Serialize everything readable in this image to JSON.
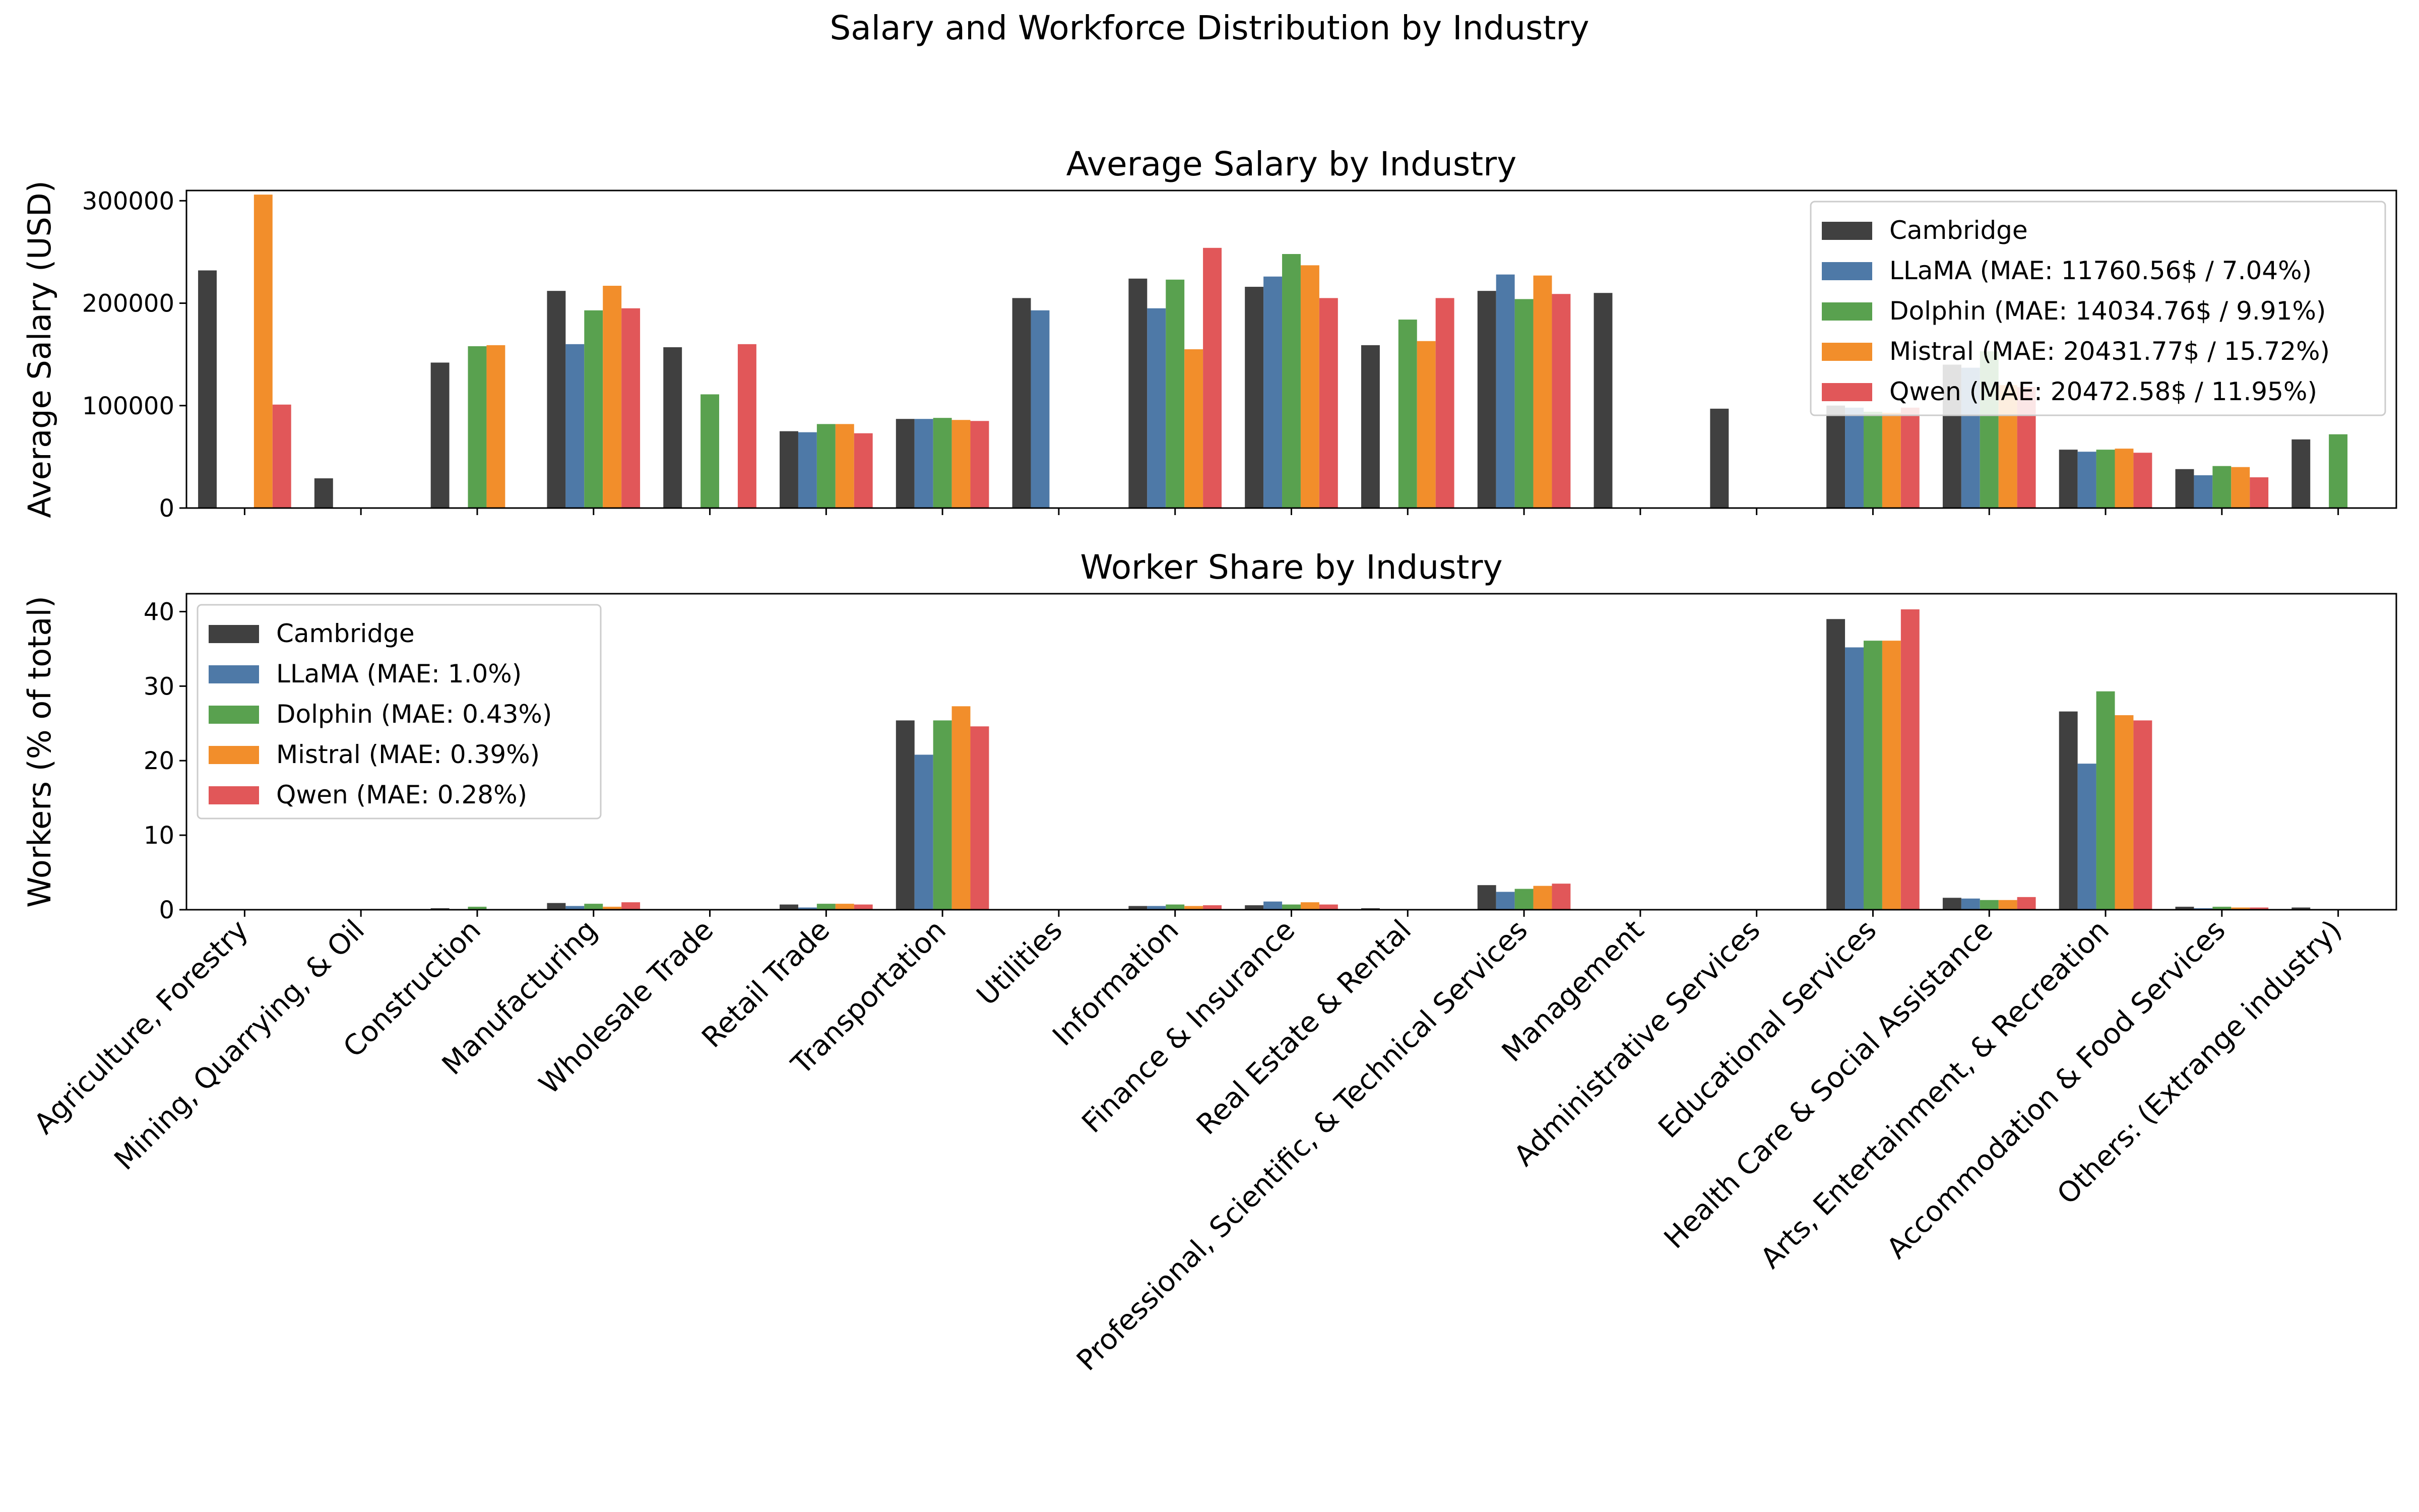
{
  "figure_title": "Salary and Workforce Distribution by Industry",
  "colors": {
    "Cambridge": "#404040",
    "LLaMA": "#4e79a7",
    "Dolphin": "#59a14f",
    "Mistral": "#f28e2b",
    "Qwen": "#e15759"
  },
  "chart_data": [
    {
      "type": "bar",
      "title": "Average Salary by Industry",
      "ylabel": "Average Salary (USD)",
      "xlabel": "",
      "ylim": [
        0,
        310000
      ],
      "yticks": [
        0,
        100000,
        200000,
        300000
      ],
      "legend": "top-right",
      "categories": [
        "Agriculture, Forestry",
        "Mining, Quarrying, & Oil",
        "Construction",
        "Manufacturing",
        "Wholesale Trade",
        "Retail Trade",
        "Transportation",
        "Utilities",
        "Information",
        "Finance & Insurance",
        "Real Estate & Rental",
        "Professional, Scientific, & Technical Services",
        "Management",
        "Administrative Services",
        "Educational Services",
        "Health Care & Social Assistance",
        "Arts, Entertainment, & Recreation",
        "Accommodation & Food Services",
        "Others: (Extrange industry)"
      ],
      "series": [
        {
          "key": "Cambridge",
          "name": "Cambridge",
          "values": [
            232000,
            29000,
            142000,
            212000,
            157000,
            75000,
            87000,
            205000,
            224000,
            216000,
            159000,
            212000,
            210000,
            97000,
            100000,
            140000,
            57000,
            38000,
            67000
          ]
        },
        {
          "key": "LLaMA",
          "name": "LLaMA (MAE: 11760.56$ / 7.04%)",
          "values": [
            0,
            0,
            0,
            160000,
            0,
            74000,
            87000,
            193000,
            195000,
            226000,
            0,
            228000,
            0,
            0,
            98000,
            137000,
            55000,
            32000,
            0
          ]
        },
        {
          "key": "Dolphin",
          "name": "Dolphin (MAE: 14034.76$ / 9.91%)",
          "values": [
            0,
            0,
            158000,
            193000,
            111000,
            82000,
            88000,
            0,
            223000,
            248000,
            184000,
            204000,
            0,
            0,
            94000,
            153000,
            57000,
            41000,
            72000
          ]
        },
        {
          "key": "Mistral",
          "name": "Mistral (MAE: 20431.77$ / 15.72%)",
          "values": [
            306000,
            0,
            159000,
            217000,
            0,
            82000,
            86000,
            0,
            155000,
            237000,
            163000,
            227000,
            0,
            0,
            93000,
            120000,
            58000,
            40000,
            0
          ]
        },
        {
          "key": "Qwen",
          "name": "Qwen (MAE: 20472.58$ / 11.95%)",
          "values": [
            101000,
            0,
            0,
            195000,
            160000,
            73000,
            85000,
            0,
            254000,
            205000,
            205000,
            209000,
            0,
            0,
            98000,
            118000,
            54000,
            30000,
            0
          ]
        }
      ]
    },
    {
      "type": "bar",
      "title": "Worker Share by Industry",
      "ylabel": "Workers (% of total)",
      "xlabel": "",
      "ylim": [
        0,
        42.4
      ],
      "yticks": [
        0,
        10,
        20,
        30,
        40
      ],
      "legend": "top-left",
      "categories": [
        "Agriculture, Forestry",
        "Mining, Quarrying, & Oil",
        "Construction",
        "Manufacturing",
        "Wholesale Trade",
        "Retail Trade",
        "Transportation",
        "Utilities",
        "Information",
        "Finance & Insurance",
        "Real Estate & Rental",
        "Professional, Scientific, & Technical Services",
        "Management",
        "Administrative Services",
        "Educational Services",
        "Health Care & Social Assistance",
        "Arts, Entertainment, & Recreation",
        "Accommodation & Food Services",
        "Others: (Extrange industry)"
      ],
      "series": [
        {
          "key": "Cambridge",
          "name": "Cambridge",
          "values": [
            0.05,
            0.05,
            0.2,
            0.9,
            0.05,
            0.7,
            25.4,
            0.1,
            0.5,
            0.6,
            0.2,
            3.3,
            0.05,
            0.05,
            39.0,
            1.6,
            26.6,
            0.4,
            0.3
          ]
        },
        {
          "key": "LLaMA",
          "name": "LLaMA (MAE: 1.0%)",
          "values": [
            0,
            0,
            0,
            0.5,
            0,
            0.3,
            20.8,
            0,
            0.5,
            1.1,
            0,
            2.4,
            0,
            0,
            35.2,
            1.5,
            19.6,
            0.2,
            0
          ]
        },
        {
          "key": "Dolphin",
          "name": "Dolphin (MAE: 0.43%)",
          "values": [
            0,
            0,
            0.4,
            0.8,
            0.1,
            0.8,
            25.4,
            0,
            0.7,
            0.7,
            0.1,
            2.8,
            0,
            0,
            36.1,
            1.3,
            29.3,
            0.4,
            0.1
          ]
        },
        {
          "key": "Mistral",
          "name": "Mistral (MAE: 0.39%)",
          "values": [
            0.05,
            0,
            0.1,
            0.4,
            0,
            0.8,
            27.3,
            0,
            0.5,
            1.0,
            0.1,
            3.2,
            0,
            0,
            36.1,
            1.3,
            26.1,
            0.3,
            0
          ]
        },
        {
          "key": "Qwen",
          "name": "Qwen (MAE: 0.28%)",
          "values": [
            0.1,
            0,
            0.1,
            1.0,
            0.1,
            0.7,
            24.6,
            0,
            0.6,
            0.7,
            0.1,
            3.5,
            0,
            0,
            40.3,
            1.7,
            25.4,
            0.3,
            0.1
          ]
        }
      ]
    }
  ]
}
